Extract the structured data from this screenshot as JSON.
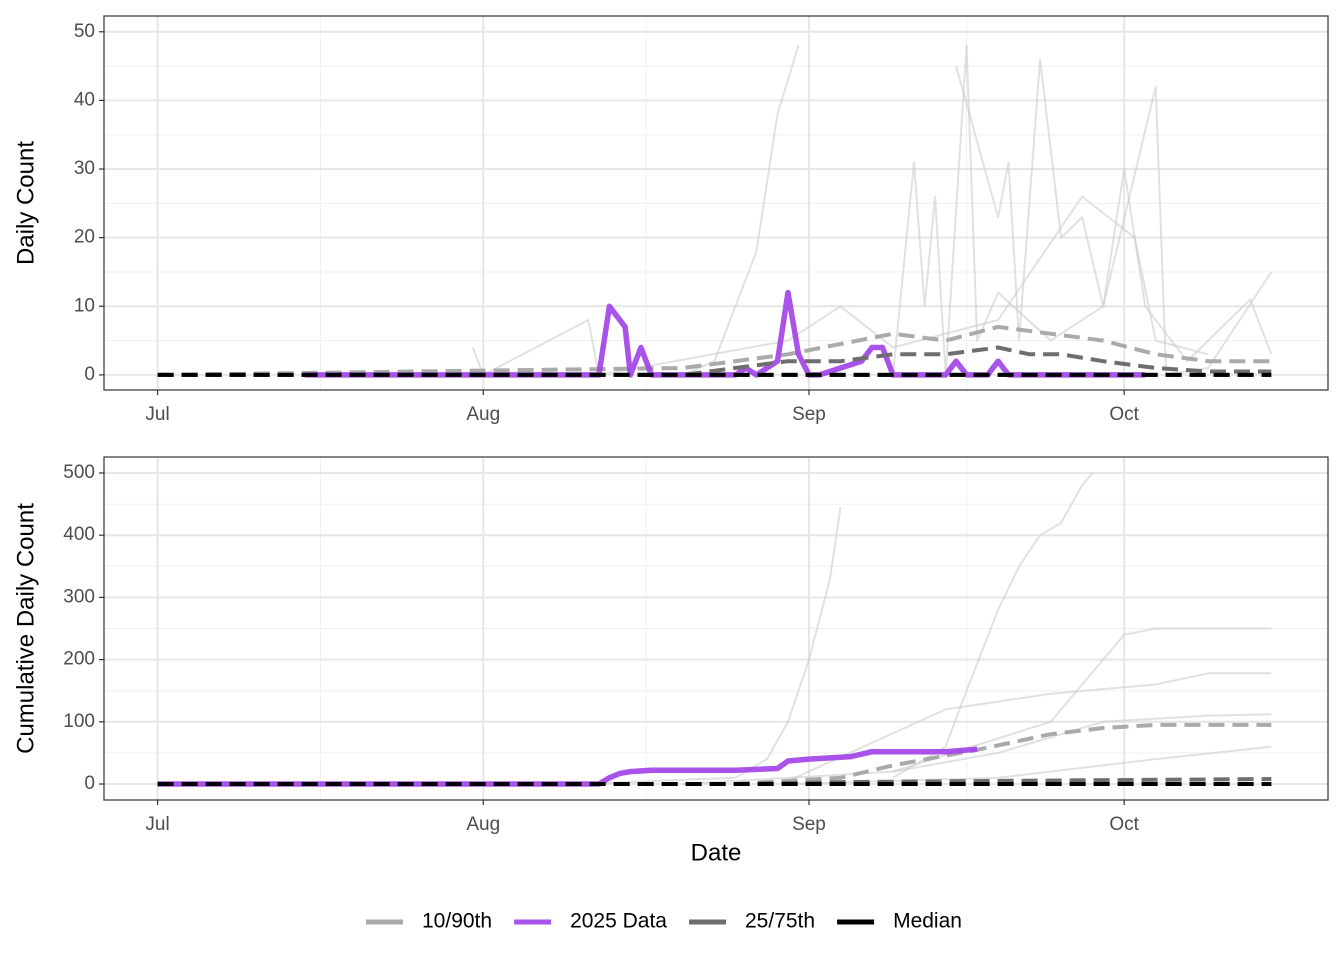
{
  "chart_data": [
    {
      "type": "line",
      "y_label": "Daily Count",
      "xlim": [
        -5.1,
        111.4
      ],
      "xticks": [
        {
          "value": 0,
          "label": "Jul"
        },
        {
          "value": 31,
          "label": "Aug"
        },
        {
          "value": 62,
          "label": "Sep"
        },
        {
          "value": 92,
          "label": "Oct"
        }
      ],
      "ylim": [
        -2.2,
        52.3
      ],
      "yticks": [
        0,
        10,
        20,
        30,
        40,
        50
      ],
      "grid": true,
      "minor_grid": true,
      "series": [
        {
          "color": "#c8c8c8",
          "x": [
            50,
            53,
            57,
            59,
            61
          ],
          "values": [
            0,
            2,
            18,
            38,
            48
          ]
        },
        {
          "color": "#c8c8c8",
          "x": [
            70,
            72,
            73,
            74,
            75,
            77,
            78,
            80,
            85,
            90,
            95,
            96,
            100,
            106
          ],
          "values": [
            0,
            31,
            10,
            26,
            0,
            48,
            5,
            12,
            5,
            10,
            42,
            0,
            1,
            15
          ]
        },
        {
          "color": "#c8c8c8",
          "x": [
            76,
            80,
            81,
            82,
            84,
            86,
            88,
            90,
            92,
            94,
            98,
            104,
            106
          ],
          "values": [
            45,
            23,
            31,
            5,
            46,
            20,
            23,
            10,
            30,
            10,
            2,
            11,
            3
          ]
        },
        {
          "color": "#c8c8c8",
          "x": [
            30,
            31,
            41,
            42,
            60,
            65,
            70,
            80,
            88,
            93,
            95,
            100
          ],
          "values": [
            4,
            0,
            8,
            0,
            5,
            10,
            4,
            8,
            26,
            20,
            5,
            3
          ]
        },
        {
          "name": "10/90th",
          "color": "#aaaaaa",
          "dash": true,
          "x": [
            0,
            50,
            60,
            70,
            75,
            80,
            85,
            90,
            95,
            100,
            106
          ],
          "values": [
            0,
            1,
            3,
            6,
            5,
            7,
            6,
            5,
            3,
            2,
            2
          ]
        },
        {
          "name": "10/90th",
          "color": "#aaaaaa",
          "dash": true,
          "x": [
            0,
            106
          ],
          "values": [
            0,
            0
          ]
        },
        {
          "name": "2025 Data",
          "color": "#a040e8",
          "x": [
            14,
            42,
            43,
            44.5,
            45,
            46,
            47,
            55,
            56,
            57,
            59,
            60,
            61,
            62,
            63,
            65,
            67,
            68,
            69,
            70,
            75,
            76,
            77,
            79,
            80,
            81,
            94
          ],
          "values": [
            0,
            0,
            10,
            7,
            0,
            4,
            0,
            0,
            1,
            0,
            2,
            12,
            3,
            0,
            0,
            1,
            2,
            4,
            4,
            0,
            0,
            2,
            0,
            0,
            2,
            0,
            0
          ]
        },
        {
          "name": "25/75th",
          "color": "#6e6e6e",
          "dash": true,
          "x": [
            0,
            50,
            55,
            60,
            65,
            70,
            75,
            80,
            83,
            86,
            90,
            95,
            100,
            106
          ],
          "values": [
            0,
            0,
            1,
            2,
            2,
            3,
            3,
            4,
            3,
            3,
            2,
            1,
            0.5,
            0.5
          ]
        },
        {
          "name": "25/75th",
          "color": "#6e6e6e",
          "dash": true,
          "x": [
            0,
            106
          ],
          "values": [
            0,
            0
          ]
        },
        {
          "name": "Median",
          "color": "#000000",
          "dash": true,
          "x": [
            0,
            106
          ],
          "values": [
            0,
            0
          ]
        }
      ]
    },
    {
      "type": "line",
      "y_label": "Cumulative Daily Count",
      "x_label": "Date",
      "xlim": [
        -5.1,
        111.4
      ],
      "xticks": [
        {
          "value": 0,
          "label": "Jul"
        },
        {
          "value": 31,
          "label": "Aug"
        },
        {
          "value": 62,
          "label": "Sep"
        },
        {
          "value": 92,
          "label": "Oct"
        }
      ],
      "ylim": [
        -25.7,
        525.7
      ],
      "yticks": [
        0,
        100,
        200,
        300,
        400,
        500
      ],
      "grid": true,
      "minor_grid": true,
      "series": [
        {
          "color": "#c8c8c8",
          "x": [
            40,
            55,
            58,
            60,
            62,
            64,
            65
          ],
          "values": [
            0,
            10,
            40,
            100,
            200,
            330,
            445
          ]
        },
        {
          "color": "#c8c8c8",
          "x": [
            70,
            75,
            77,
            80,
            82,
            84,
            86,
            88,
            89
          ],
          "values": [
            10,
            60,
            150,
            280,
            350,
            400,
            420,
            480,
            500
          ]
        },
        {
          "color": "#c8c8c8",
          "x": [
            50,
            70,
            85,
            90,
            92,
            95,
            106
          ],
          "values": [
            0,
            20,
            100,
            200,
            240,
            250,
            250
          ]
        },
        {
          "color": "#c8c8c8",
          "x": [
            60,
            75,
            85,
            95,
            100,
            106
          ],
          "values": [
            5,
            120,
            145,
            160,
            178,
            178
          ]
        },
        {
          "color": "#c8c8c8",
          "x": [
            60,
            80,
            95,
            106
          ],
          "values": [
            0,
            10,
            40,
            60
          ]
        },
        {
          "color": "#c8c8c8",
          "x": [
            70,
            80,
            90,
            100,
            106
          ],
          "values": [
            20,
            50,
            100,
            110,
            112
          ]
        },
        {
          "name": "10/90th",
          "color": "#aaaaaa",
          "dash": true,
          "x": [
            0,
            55,
            65,
            70,
            78,
            85,
            90,
            95,
            106
          ],
          "values": [
            0,
            0,
            10,
            30,
            55,
            80,
            90,
            95,
            95
          ]
        },
        {
          "name": "10/90th",
          "color": "#aaaaaa",
          "dash": true,
          "x": [
            0,
            106
          ],
          "values": [
            0,
            0
          ]
        },
        {
          "name": "2025 Data",
          "color": "#a040e8",
          "x": [
            0,
            42,
            43,
            44,
            45,
            47,
            55,
            59,
            60,
            62,
            66,
            68,
            75,
            78
          ],
          "values": [
            0,
            0,
            10,
            17,
            20,
            22,
            22,
            25,
            37,
            40,
            44,
            52,
            52,
            56
          ]
        },
        {
          "name": "25/75th",
          "color": "#6e6e6e",
          "dash": true,
          "x": [
            0,
            55,
            65,
            80,
            106
          ],
          "values": [
            0,
            0,
            3,
            5,
            8
          ]
        },
        {
          "name": "25/75th",
          "color": "#6e6e6e",
          "dash": true,
          "x": [
            0,
            106
          ],
          "values": [
            0,
            0
          ]
        },
        {
          "name": "Median",
          "color": "#000000",
          "dash": true,
          "x": [
            0,
            106
          ],
          "values": [
            0,
            0
          ]
        }
      ]
    }
  ]
}
